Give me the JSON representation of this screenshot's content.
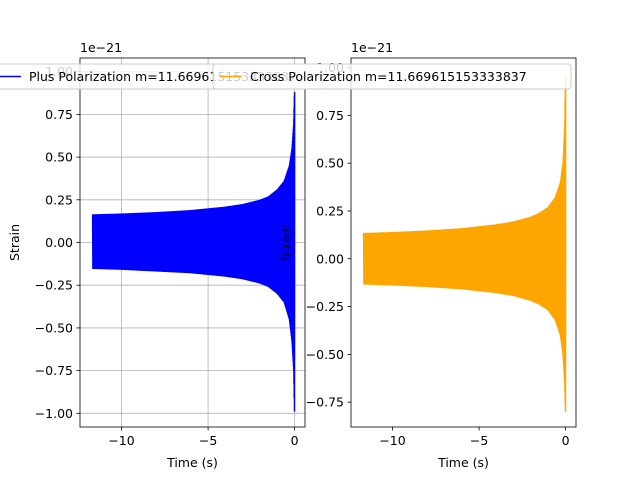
{
  "chart_data": [
    {
      "type": "line",
      "title": "",
      "xlabel": "Time (s)",
      "ylabel": "Strain",
      "y_offset_label": "1e−21",
      "xlim": [
        -12.4,
        0.6
      ],
      "ylim": [
        -1.08,
        1.08
      ],
      "xticks": [
        -10,
        -5,
        0
      ],
      "xtick_labels": [
        "−10",
        "−5",
        "0"
      ],
      "yticks": [
        -1.0,
        -0.75,
        -0.5,
        -0.25,
        0.0,
        0.25,
        0.5,
        0.75,
        1.0
      ],
      "ytick_labels": [
        "−1.00",
        "−0.75",
        "−0.50",
        "−0.25",
        "0.00",
        "0.25",
        "0.50",
        "0.75",
        "1.00"
      ],
      "grid": true,
      "legend_position": "upper center",
      "color": "#0000ff",
      "series": [
        {
          "name": "Plus Polarization m=11.669615153333837",
          "t_start": -11.67,
          "t_end": 0.0,
          "amplitude_envelope": {
            "t": [
              -11.67,
              -10,
              -8,
              -6,
              -4,
              -3,
              -2,
              -1.5,
              -1,
              -0.6,
              -0.3,
              -0.15,
              -0.05,
              -0.01
            ],
            "upper": [
              0.165,
              0.17,
              0.178,
              0.19,
              0.21,
              0.225,
              0.25,
              0.27,
              0.31,
              0.36,
              0.45,
              0.55,
              0.7,
              0.88
            ],
            "lower": [
              -0.155,
              -0.16,
              -0.17,
              -0.18,
              -0.2,
              -0.215,
              -0.24,
              -0.26,
              -0.3,
              -0.35,
              -0.45,
              -0.58,
              -0.75,
              -0.99
            ]
          }
        }
      ]
    },
    {
      "type": "line",
      "title": "",
      "xlabel": "Time (s)",
      "ylabel": "Strain",
      "y_offset_label": "1e−21",
      "xlim": [
        -12.4,
        0.6
      ],
      "ylim": [
        -0.88,
        1.05
      ],
      "xticks": [
        -10,
        -5,
        0
      ],
      "xtick_labels": [
        "−10",
        "−5",
        "0"
      ],
      "yticks": [
        -0.75,
        -0.5,
        -0.25,
        0.0,
        0.25,
        0.5,
        0.75,
        1.0
      ],
      "ytick_labels": [
        "−0.75",
        "−0.50",
        "−0.25",
        "0.00",
        "0.25",
        "0.50",
        "0.75",
        "1.00"
      ],
      "grid": false,
      "legend_position": "upper center",
      "color": "#ffa500",
      "series": [
        {
          "name": "Cross Polarization m=11.669615153333837",
          "t_start": -11.67,
          "t_end": 0.0,
          "amplitude_envelope": {
            "t": [
              -11.67,
              -10,
              -8,
              -6,
              -4,
              -3,
              -2,
              -1.5,
              -1,
              -0.6,
              -0.3,
              -0.15,
              -0.05,
              -0.01
            ],
            "upper": [
              0.135,
              0.14,
              0.148,
              0.16,
              0.18,
              0.195,
              0.22,
              0.24,
              0.27,
              0.32,
              0.4,
              0.5,
              0.7,
              0.96
            ],
            "lower": [
              -0.135,
              -0.14,
              -0.148,
              -0.16,
              -0.18,
              -0.195,
              -0.22,
              -0.24,
              -0.27,
              -0.32,
              -0.4,
              -0.5,
              -0.65,
              -0.8
            ]
          }
        }
      ]
    }
  ]
}
